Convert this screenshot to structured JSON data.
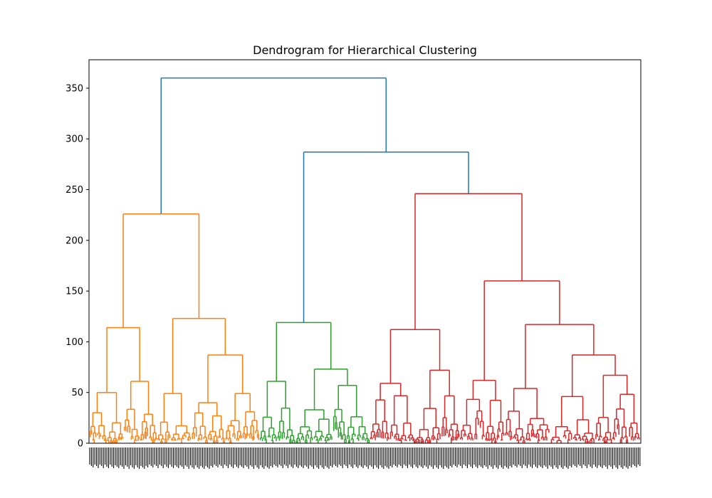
{
  "chart_data": {
    "type": "dendrogram",
    "title": "Dendrogram for Hierarchical Clustering",
    "xlabel": "",
    "ylabel": "",
    "ylim": [
      0,
      378
    ],
    "yticks": [
      0,
      50,
      100,
      150,
      200,
      250,
      300,
      350
    ],
    "grid": false,
    "leaf_labels_visible": "illegible (dense, rotated)",
    "colors": {
      "link_root": "#1f77b4",
      "cluster_1": "#ff7f0e",
      "cluster_2": "#2ca02c",
      "cluster_3": "#d62728"
    },
    "top_merges": [
      {
        "left": "cluster_1",
        "right": "merge_B",
        "height": 360,
        "color": "link_root"
      },
      {
        "id": "merge_B",
        "left": "cluster_2",
        "right": "cluster_3",
        "height": 287,
        "color": "link_root"
      }
    ],
    "cluster_1": {
      "color": "cluster_1",
      "root_height": 226,
      "children": [
        {
          "height": 114,
          "children": [
            {
              "height": 50
            },
            {
              "height": 61
            }
          ]
        },
        {
          "height": 123,
          "children": [
            {
              "height": 49
            },
            {
              "height": 87,
              "children": [
                {
                  "height": 40
                },
                {
                  "height": 49
                }
              ]
            }
          ]
        }
      ]
    },
    "cluster_2": {
      "color": "cluster_2",
      "root_height": 119,
      "children": [
        {
          "height": 61
        },
        {
          "height": 73,
          "children": [
            {
              "height": 33
            },
            {
              "height": 57
            }
          ]
        }
      ]
    },
    "cluster_3": {
      "color": "cluster_3",
      "root_height": 246,
      "children": [
        {
          "height": 112,
          "children": [
            {
              "height": 59
            },
            {
              "height": 72
            }
          ]
        },
        {
          "height": 160,
          "children": [
            {
              "height": 62
            },
            {
              "height": 117,
              "children": [
                {
                  "height": 54
                },
                {
                  "height": 87,
                  "children": [
                    {
                      "height": 46
                    },
                    {
                      "height": 67
                    }
                  ]
                }
              ]
            }
          ]
        }
      ]
    }
  }
}
